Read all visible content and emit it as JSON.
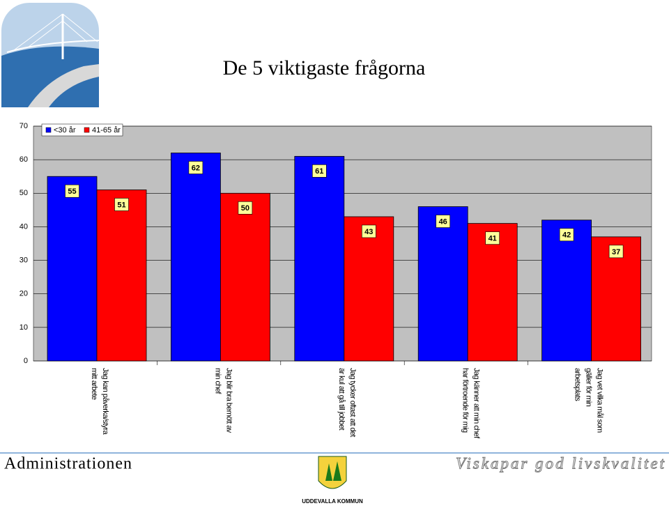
{
  "chart_data": {
    "type": "bar",
    "title": "De 5 viktigaste frågorna",
    "categories": [
      [
        "Jag kan påverka/styra",
        "mitt arbete"
      ],
      [
        "Jag blir bra bemött av",
        "min chef"
      ],
      [
        "Jag tycker oftast att det",
        "är kul att gå till jobbet"
      ],
      [
        "Jag känner att min chef",
        "har förtroende för mig"
      ],
      [
        "Jag vet vilka mål som",
        "gäller för min",
        "arbetsplats"
      ]
    ],
    "series": [
      {
        "name": "<30 år",
        "color": "#0000ff",
        "values": [
          55,
          62,
          61,
          46,
          42
        ]
      },
      {
        "name": "41-65 år",
        "color": "#ff0000",
        "values": [
          51,
          50,
          43,
          41,
          37
        ]
      }
    ],
    "ylim": [
      0,
      70
    ],
    "yticks": [
      0,
      10,
      20,
      30,
      40,
      50,
      60,
      70
    ],
    "grid": true,
    "legend": "top-left"
  },
  "footer": {
    "left": "Administrationen",
    "right": "Viskapar god livskvalitet",
    "logo": "UDDEVALLA KOMMUN"
  }
}
